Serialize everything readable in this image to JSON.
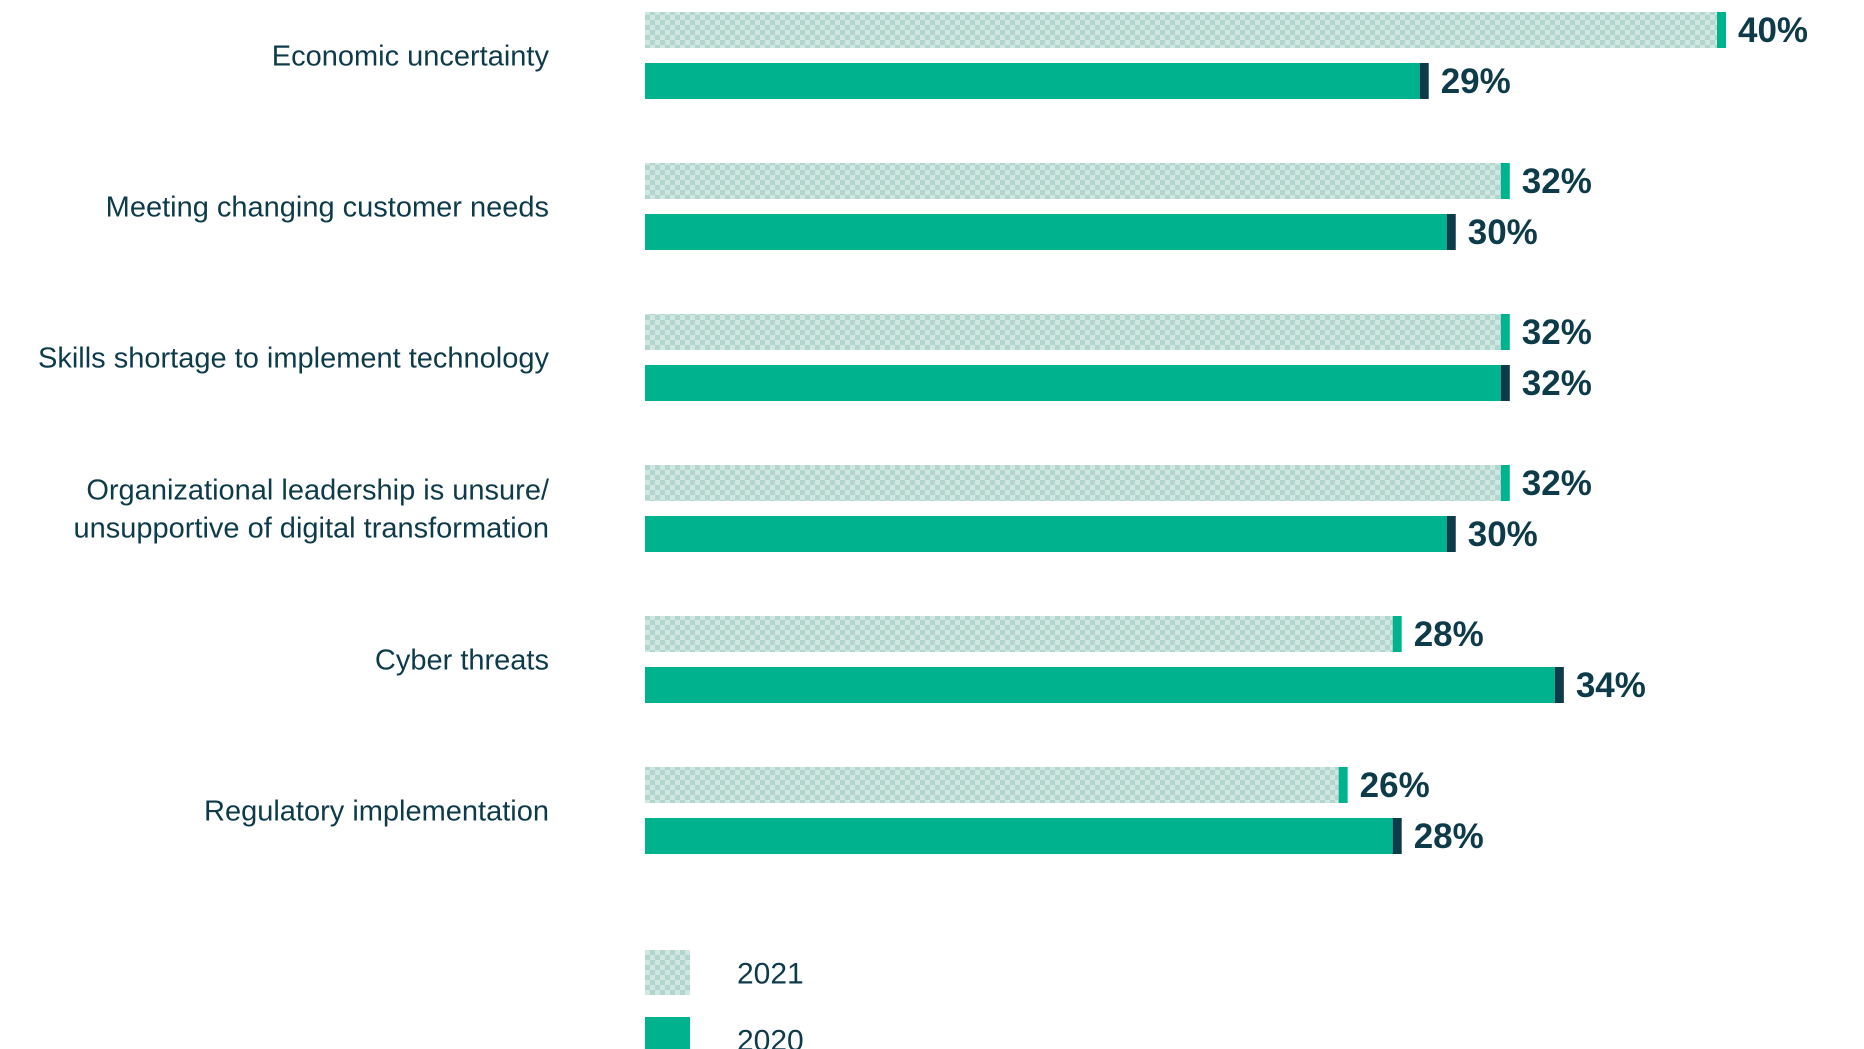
{
  "chart_data": {
    "type": "bar",
    "orientation": "horizontal",
    "categories": [
      [
        "Economic uncertainty"
      ],
      [
        "Meeting changing customer needs"
      ],
      [
        "Skills shortage to implement technology"
      ],
      [
        "Organizational leadership is unsure/",
        "unsupportive of digital transformation"
      ],
      [
        "Cyber threats"
      ],
      [
        "Regulatory implementation"
      ]
    ],
    "series": [
      {
        "name": "2021",
        "values": [
          40,
          32,
          32,
          32,
          28,
          26
        ],
        "value_labels": [
          "40%",
          "32%",
          "32%",
          "32%",
          "28%",
          "26%"
        ],
        "color": "#cfe6e1",
        "pattern_color": "#b2d6ce",
        "cap_color": "#00b38f"
      },
      {
        "name": "2020",
        "values": [
          29,
          30,
          32,
          30,
          34,
          28
        ],
        "value_labels": [
          "29%",
          "30%",
          "32%",
          "30%",
          "34%",
          "28%"
        ],
        "color": "#00b38f",
        "cap_color": "#0d3b4a"
      }
    ],
    "legend": {
      "placement": "bottom-left",
      "order": [
        "2021",
        "2020"
      ]
    },
    "xlim": [
      0,
      40
    ],
    "grid": false
  }
}
